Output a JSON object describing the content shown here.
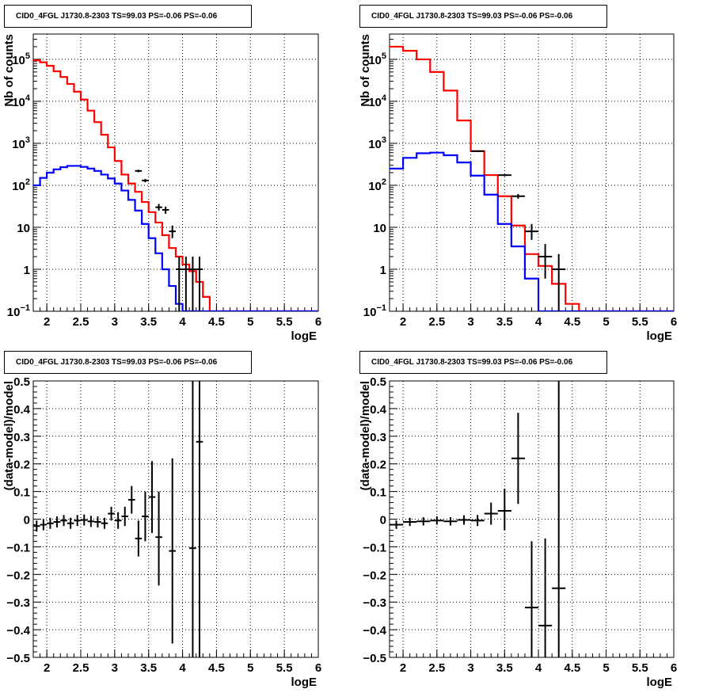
{
  "chart_data": [
    {
      "type": "line",
      "title": "CID0_4FGL J1730.8-2303 TS=99.03 PS=-0.06 PS=-0.06",
      "xlabel": "logE",
      "ylabel": "Nb of counts",
      "log_y": true,
      "xlim": [
        1.8,
        6.0
      ],
      "ylim": [
        0.1,
        400000
      ],
      "grid": true,
      "x_ticks": [
        "2",
        "2.5",
        "3",
        "3.5",
        "4",
        "4.5",
        "5",
        "5.5",
        "6"
      ],
      "y_ticks": [
        "10^-1",
        "1",
        "10",
        "10^2",
        "10^3",
        "10^4",
        "10^5"
      ],
      "bin_edges": [
        1.8,
        1.9,
        2.0,
        2.1,
        2.2,
        2.3,
        2.4,
        2.5,
        2.6,
        2.7,
        2.8,
        2.9,
        3.0,
        3.1,
        3.2,
        3.3,
        3.4,
        3.5,
        3.6,
        3.7,
        3.8,
        3.9,
        4.0,
        4.1,
        4.2,
        4.3,
        4.4,
        4.5,
        4.6,
        4.7,
        4.8,
        4.9,
        5.0,
        5.1,
        5.2,
        5.3,
        5.4,
        5.5,
        5.6,
        5.7,
        5.8,
        5.9,
        6.0
      ],
      "series": [
        {
          "name": "",
          "color": "#ff0000",
          "style": "step",
          "values": [
            95000,
            85000,
            70000,
            52000,
            38000,
            26000,
            17000,
            11000,
            6000,
            3200,
            1600,
            800,
            380,
            180,
            110,
            70,
            40,
            23,
            13,
            6.5,
            3.2,
            2.0,
            1.3,
            0.9,
            0.5,
            0.22,
            0.1,
            0.1,
            0.1,
            0.1,
            0.1,
            0.1,
            0.1,
            0.1,
            0.1,
            0.1,
            0.1,
            0.1,
            0.1,
            0.1,
            0.1,
            0.1
          ]
        },
        {
          "name": "",
          "color": "#0000ff",
          "style": "step",
          "values": [
            100,
            150,
            200,
            240,
            270,
            290,
            290,
            275,
            250,
            220,
            180,
            145,
            110,
            75,
            45,
            25,
            12,
            5.5,
            2.4,
            1.0,
            0.4,
            0.15,
            0.1,
            0.1,
            0.1,
            0.1,
            0.1,
            0.1,
            0.1,
            0.1,
            0.1,
            0.1,
            0.1,
            0.1,
            0.1,
            0.1,
            0.1,
            0.1,
            0.1,
            0.1,
            0.1,
            0.1
          ]
        },
        {
          "name": "",
          "color": "#000000",
          "style": "errorbar",
          "points": [
            {
              "x": 3.35,
              "xerr": 0.05,
              "y": 220,
              "ylo": 205,
              "yhi": 235
            },
            {
              "x": 3.45,
              "xerr": 0.05,
              "y": 130,
              "ylo": 118,
              "yhi": 142
            },
            {
              "x": 3.65,
              "xerr": 0.05,
              "y": 30,
              "ylo": 25,
              "yhi": 36
            },
            {
              "x": 3.75,
              "xerr": 0.05,
              "y": 26,
              "ylo": 21,
              "yhi": 31
            },
            {
              "x": 3.85,
              "xerr": 0.05,
              "y": 8,
              "ylo": 5.5,
              "yhi": 11
            },
            {
              "x": 3.95,
              "xerr": 0.05,
              "y": 1,
              "ylo": 0.1,
              "yhi": 2
            },
            {
              "x": 4.05,
              "xerr": 0.05,
              "y": 1,
              "ylo": 0.1,
              "yhi": 2
            },
            {
              "x": 4.15,
              "xerr": 0.05,
              "y": 1,
              "ylo": 0.1,
              "yhi": 2
            },
            {
              "x": 4.25,
              "xerr": 0.05,
              "y": 1,
              "ylo": 0.1,
              "yhi": 2
            }
          ]
        }
      ]
    },
    {
      "type": "line",
      "title": "CID0_4FGL J1730.8-2303 TS=99.03 PS=-0.06 PS=-0.06",
      "xlabel": "logE",
      "ylabel": "Nb of counts",
      "log_y": true,
      "xlim": [
        1.8,
        6.0
      ],
      "ylim": [
        0.1,
        400000
      ],
      "grid": true,
      "x_ticks": [
        "2",
        "2.5",
        "3",
        "3.5",
        "4",
        "4.5",
        "5",
        "5.5",
        "6"
      ],
      "y_ticks": [
        "10^-1",
        "1",
        "10",
        "10^2",
        "10^3",
        "10^4",
        "10^5"
      ],
      "bin_edges": [
        1.8,
        2.0,
        2.2,
        2.4,
        2.6,
        2.8,
        3.0,
        3.2,
        3.4,
        3.6,
        3.8,
        4.0,
        4.2,
        4.4,
        4.6,
        4.8,
        5.0,
        5.2,
        5.4,
        5.6,
        5.8,
        6.0
      ],
      "series": [
        {
          "name": "",
          "color": "#ff0000",
          "style": "step",
          "values": [
            200000,
            160000,
            100000,
            50000,
            18000,
            3500,
            650,
            175,
            55,
            11,
            2.3,
            1.2,
            0.45,
            0.15,
            0.1,
            0.1,
            0.1,
            0.1,
            0.1,
            0.1,
            0.1
          ]
        },
        {
          "name": "",
          "color": "#0000ff",
          "style": "step",
          "values": [
            250,
            450,
            580,
            600,
            520,
            350,
            170,
            60,
            12,
            3.5,
            0.6,
            0.1,
            0.1,
            0.1,
            0.1,
            0.1,
            0.1,
            0.1,
            0.1,
            0.1,
            0.1
          ]
        },
        {
          "name": "",
          "color": "#000000",
          "style": "errorbar",
          "points": [
            {
              "x": 3.1,
              "xerr": 0.1,
              "y": 650,
              "ylo": 620,
              "yhi": 680
            },
            {
              "x": 3.5,
              "xerr": 0.1,
              "y": 175,
              "ylo": 165,
              "yhi": 185
            },
            {
              "x": 3.7,
              "xerr": 0.1,
              "y": 55,
              "ylo": 48,
              "yhi": 62
            },
            {
              "x": 3.9,
              "xerr": 0.1,
              "y": 8,
              "ylo": 5,
              "yhi": 12
            },
            {
              "x": 4.1,
              "xerr": 0.1,
              "y": 2,
              "ylo": 0.6,
              "yhi": 4
            },
            {
              "x": 4.3,
              "xerr": 0.1,
              "y": 1,
              "ylo": 0.1,
              "yhi": 2.3
            }
          ]
        }
      ]
    },
    {
      "type": "scatter",
      "title": "CID0_4FGL J1730.8-2303 TS=99.03 PS=-0.06 PS=-0.06",
      "xlabel": "logE",
      "ylabel": "(data-model)/model",
      "xlim": [
        1.8,
        6.0
      ],
      "ylim": [
        -0.5,
        0.5
      ],
      "grid": true,
      "x_ticks": [
        "2",
        "2.5",
        "3",
        "3.5",
        "4",
        "4.5",
        "5",
        "5.5",
        "6"
      ],
      "y_ticks": [
        "−0.5",
        "−0.4",
        "−0.3",
        "−0.2",
        "−0.1",
        "0",
        "0.1",
        "0.2",
        "0.3",
        "0.4",
        "0.5"
      ],
      "series": [
        {
          "name": "",
          "color": "#000000",
          "style": "errorbar",
          "points": [
            {
              "x": 1.85,
              "xerr": 0.05,
              "y": -0.025,
              "ylo": -0.045,
              "yhi": -0.005
            },
            {
              "x": 1.95,
              "xerr": 0.05,
              "y": -0.02,
              "ylo": -0.04,
              "yhi": 0.0
            },
            {
              "x": 2.05,
              "xerr": 0.05,
              "y": -0.015,
              "ylo": -0.035,
              "yhi": 0.005
            },
            {
              "x": 2.15,
              "xerr": 0.05,
              "y": -0.01,
              "ylo": -0.03,
              "yhi": 0.01
            },
            {
              "x": 2.25,
              "xerr": 0.05,
              "y": -0.005,
              "ylo": -0.025,
              "yhi": 0.015
            },
            {
              "x": 2.35,
              "xerr": 0.05,
              "y": -0.015,
              "ylo": -0.035,
              "yhi": 0.005
            },
            {
              "x": 2.45,
              "xerr": 0.05,
              "y": -0.005,
              "ylo": -0.025,
              "yhi": 0.015
            },
            {
              "x": 2.55,
              "xerr": 0.05,
              "y": -0.003,
              "ylo": -0.023,
              "yhi": 0.017
            },
            {
              "x": 2.65,
              "xerr": 0.05,
              "y": -0.008,
              "ylo": -0.028,
              "yhi": 0.012
            },
            {
              "x": 2.75,
              "xerr": 0.05,
              "y": -0.01,
              "ylo": -0.03,
              "yhi": 0.01
            },
            {
              "x": 2.85,
              "xerr": 0.05,
              "y": -0.015,
              "ylo": -0.035,
              "yhi": 0.005
            },
            {
              "x": 2.95,
              "xerr": 0.05,
              "y": 0.02,
              "ylo": -0.005,
              "yhi": 0.045
            },
            {
              "x": 3.05,
              "xerr": 0.05,
              "y": -0.005,
              "ylo": -0.035,
              "yhi": 0.025
            },
            {
              "x": 3.15,
              "xerr": 0.05,
              "y": 0.01,
              "ylo": -0.025,
              "yhi": 0.045
            },
            {
              "x": 3.25,
              "xerr": 0.05,
              "y": 0.07,
              "ylo": 0.02,
              "yhi": 0.12
            },
            {
              "x": 3.35,
              "xerr": 0.05,
              "y": -0.07,
              "ylo": -0.135,
              "yhi": -0.005
            },
            {
              "x": 3.45,
              "xerr": 0.05,
              "y": 0.01,
              "ylo": -0.08,
              "yhi": 0.1
            },
            {
              "x": 3.55,
              "xerr": 0.05,
              "y": 0.08,
              "ylo": -0.05,
              "yhi": 0.21
            },
            {
              "x": 3.65,
              "xerr": 0.05,
              "y": -0.065,
              "ylo": -0.24,
              "yhi": 0.1
            },
            {
              "x": 3.85,
              "xerr": 0.05,
              "y": -0.115,
              "ylo": -0.45,
              "yhi": 0.22
            },
            {
              "x": 4.15,
              "xerr": 0.05,
              "y": -0.105,
              "ylo": -0.5,
              "yhi": 0.5
            },
            {
              "x": 4.25,
              "xerr": 0.05,
              "y": 0.28,
              "ylo": -0.5,
              "yhi": 0.5
            }
          ]
        }
      ]
    },
    {
      "type": "scatter",
      "title": "CID0_4FGL J1730.8-2303 TS=99.03 PS=-0.06 PS=-0.06",
      "xlabel": "logE",
      "ylabel": "(data-model)/model",
      "xlim": [
        1.8,
        6.0
      ],
      "ylim": [
        -0.5,
        0.5
      ],
      "grid": true,
      "x_ticks": [
        "2",
        "2.5",
        "3",
        "3.5",
        "4",
        "4.5",
        "5",
        "5.5",
        "6"
      ],
      "y_ticks": [
        "−0.5",
        "−0.4",
        "−0.3",
        "−0.2",
        "−0.1",
        "0",
        "0.1",
        "0.2",
        "0.3",
        "0.4",
        "0.5"
      ],
      "series": [
        {
          "name": "",
          "color": "#000000",
          "style": "errorbar",
          "points": [
            {
              "x": 1.9,
              "xerr": 0.1,
              "y": -0.02,
              "ylo": -0.035,
              "yhi": -0.005
            },
            {
              "x": 2.1,
              "xerr": 0.1,
              "y": -0.01,
              "ylo": -0.025,
              "yhi": 0.005
            },
            {
              "x": 2.3,
              "xerr": 0.1,
              "y": -0.008,
              "ylo": -0.023,
              "yhi": 0.007
            },
            {
              "x": 2.5,
              "xerr": 0.1,
              "y": -0.005,
              "ylo": -0.02,
              "yhi": 0.01
            },
            {
              "x": 2.7,
              "xerr": 0.1,
              "y": -0.008,
              "ylo": -0.023,
              "yhi": 0.007
            },
            {
              "x": 2.9,
              "xerr": 0.1,
              "y": -0.003,
              "ylo": -0.02,
              "yhi": 0.014
            },
            {
              "x": 3.1,
              "xerr": 0.1,
              "y": -0.005,
              "ylo": -0.025,
              "yhi": 0.015
            },
            {
              "x": 3.3,
              "xerr": 0.1,
              "y": 0.02,
              "ylo": -0.02,
              "yhi": 0.06
            },
            {
              "x": 3.5,
              "xerr": 0.1,
              "y": 0.03,
              "ylo": -0.04,
              "yhi": 0.11
            },
            {
              "x": 3.7,
              "xerr": 0.1,
              "y": 0.22,
              "ylo": 0.055,
              "yhi": 0.385
            },
            {
              "x": 3.9,
              "xerr": 0.1,
              "y": -0.32,
              "ylo": -0.5,
              "yhi": -0.08
            },
            {
              "x": 4.1,
              "xerr": 0.1,
              "y": -0.385,
              "ylo": -0.5,
              "yhi": -0.07
            },
            {
              "x": 4.3,
              "xerr": 0.1,
              "y": -0.25,
              "ylo": -0.5,
              "yhi": 0.5
            }
          ]
        }
      ]
    }
  ]
}
